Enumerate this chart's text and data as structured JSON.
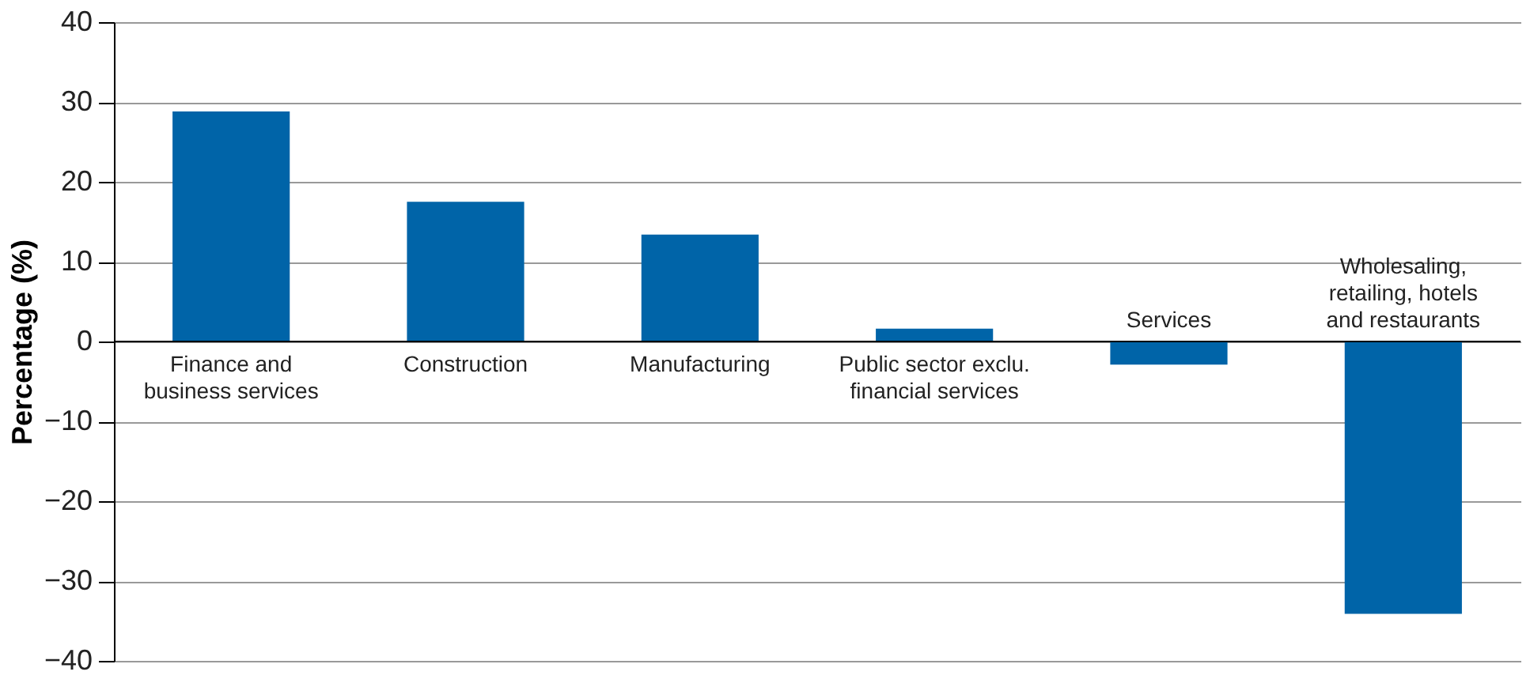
{
  "chart_data": {
    "type": "bar",
    "ylabel": "Percentage (%)",
    "categories": [
      "Finance and\nbusiness services",
      "Construction",
      "Manufacturing",
      "Public sector exclu.\nfinancial services",
      "Services",
      "Wholesaling,\nretailing, hotels\nand restaurants"
    ],
    "values": [
      28.8,
      17.5,
      13.4,
      1.6,
      -2.9,
      -34.1
    ],
    "color": "#0064a8",
    "ylim": [
      -40,
      40
    ],
    "yticks": [
      -40,
      -30,
      -20,
      -10,
      0,
      10,
      20,
      30,
      40
    ],
    "grid": "y"
  }
}
